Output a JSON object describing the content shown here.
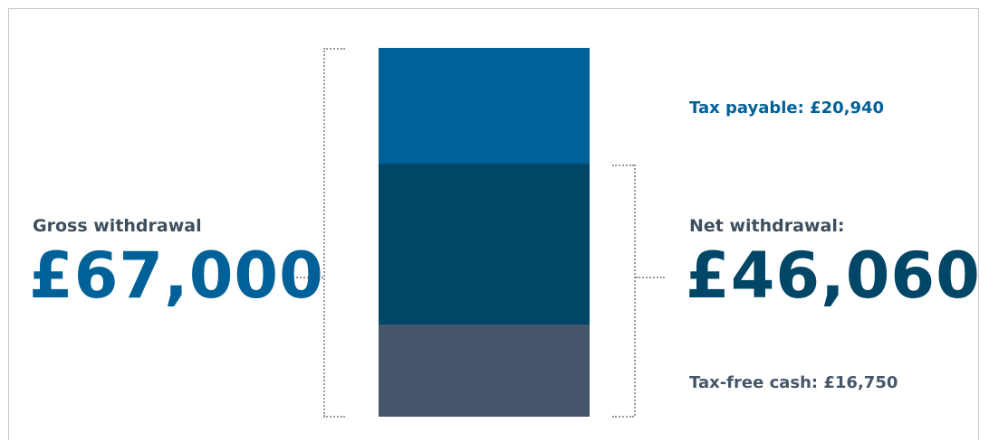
{
  "chart_data": {
    "type": "bar",
    "stacked": true,
    "categories": [
      ""
    ],
    "series": [
      {
        "name": "Tax-free cash",
        "values": [
          16750
        ]
      },
      {
        "name": "Net withdrawal",
        "values": [
          29310
        ]
      },
      {
        "name": "Tax payable",
        "values": [
          20940
        ]
      }
    ],
    "colors": {
      "tax_free": "#45566a",
      "net": "#004666",
      "tax": "#006199"
    },
    "gross": {
      "caption": "Gross withdrawal",
      "value": "£67,000",
      "color": "#006199"
    },
    "net": {
      "caption": "Net withdrawal:",
      "value": "£46,060",
      "color": "#004666"
    },
    "tax_label": {
      "text": "Tax payable: £20,940",
      "color": "#006199"
    },
    "tax_free_label": {
      "text": "Tax-free cash: £16,750",
      "color": "#45566a"
    }
  }
}
